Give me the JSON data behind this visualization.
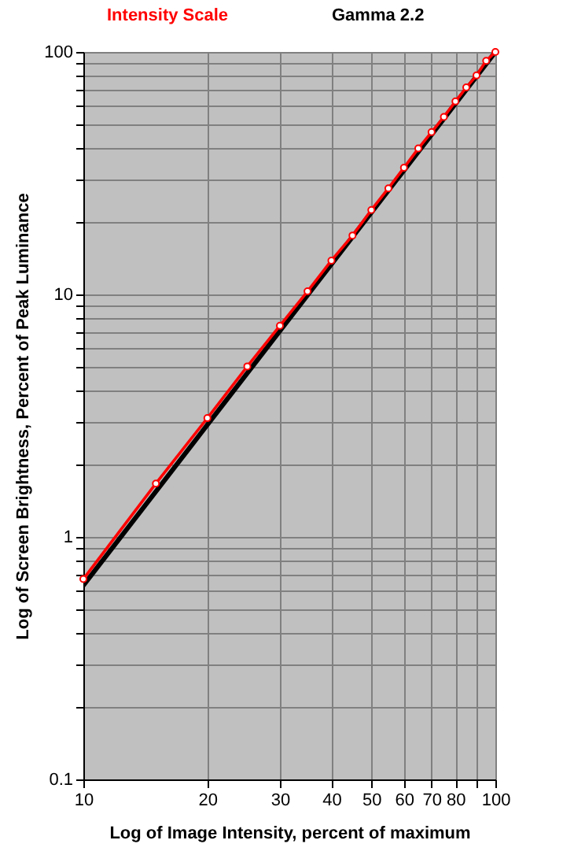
{
  "chart_data": {
    "type": "line",
    "xlabel": "Log of Image Intensity, percent of maximum",
    "ylabel": "Log of Screen Brightness, Percent of Peak Luminance",
    "log": "xy",
    "grid": true,
    "legend": "top",
    "xlim": [
      10,
      100
    ],
    "ylim": [
      0.1,
      100
    ],
    "xticks": [
      10,
      20,
      30,
      40,
      50,
      60,
      70,
      80,
      {
        "value": 90,
        "label": null
      },
      100
    ],
    "yticks": [
      0.1,
      {
        "value": 0.2,
        "label": null
      },
      {
        "value": 0.3,
        "label": null
      },
      {
        "value": 0.4,
        "label": null
      },
      {
        "value": 0.5,
        "label": null
      },
      {
        "value": 0.6,
        "label": null
      },
      {
        "value": 0.7,
        "label": null
      },
      {
        "value": 0.8,
        "label": null
      },
      {
        "value": 0.9,
        "label": null
      },
      1,
      {
        "value": 2,
        "label": null
      },
      {
        "value": 3,
        "label": null
      },
      {
        "value": 4,
        "label": null
      },
      {
        "value": 5,
        "label": null
      },
      {
        "value": 6,
        "label": null
      },
      {
        "value": 7,
        "label": null
      },
      {
        "value": 8,
        "label": null
      },
      {
        "value": 9,
        "label": null
      },
      10,
      {
        "value": 20,
        "label": null
      },
      {
        "value": 30,
        "label": null
      },
      {
        "value": 40,
        "label": null
      },
      {
        "value": 50,
        "label": null
      },
      {
        "value": 60,
        "label": null
      },
      {
        "value": 70,
        "label": null
      },
      {
        "value": 80,
        "label": null
      },
      {
        "value": 90,
        "label": null
      },
      100
    ],
    "series": [
      {
        "name": "Intensity Scale",
        "color": "#ff0000",
        "marker": "circle",
        "x": [
          10,
          15,
          20,
          25,
          30,
          35,
          40,
          45,
          50,
          55,
          60,
          65,
          70,
          75,
          80,
          85,
          90,
          95,
          100
        ],
        "values": [
          0.67,
          1.66,
          3.09,
          5.05,
          7.43,
          10.3,
          13.8,
          17.5,
          22.3,
          27.4,
          33.3,
          40.0,
          46.7,
          54.0,
          62.5,
          71.4,
          80.0,
          91.9,
          100
        ]
      },
      {
        "name": "Gamma 2.2",
        "color": "#000000",
        "marker": "none",
        "x": [
          10,
          100
        ],
        "values": [
          0.631,
          100
        ]
      }
    ]
  }
}
